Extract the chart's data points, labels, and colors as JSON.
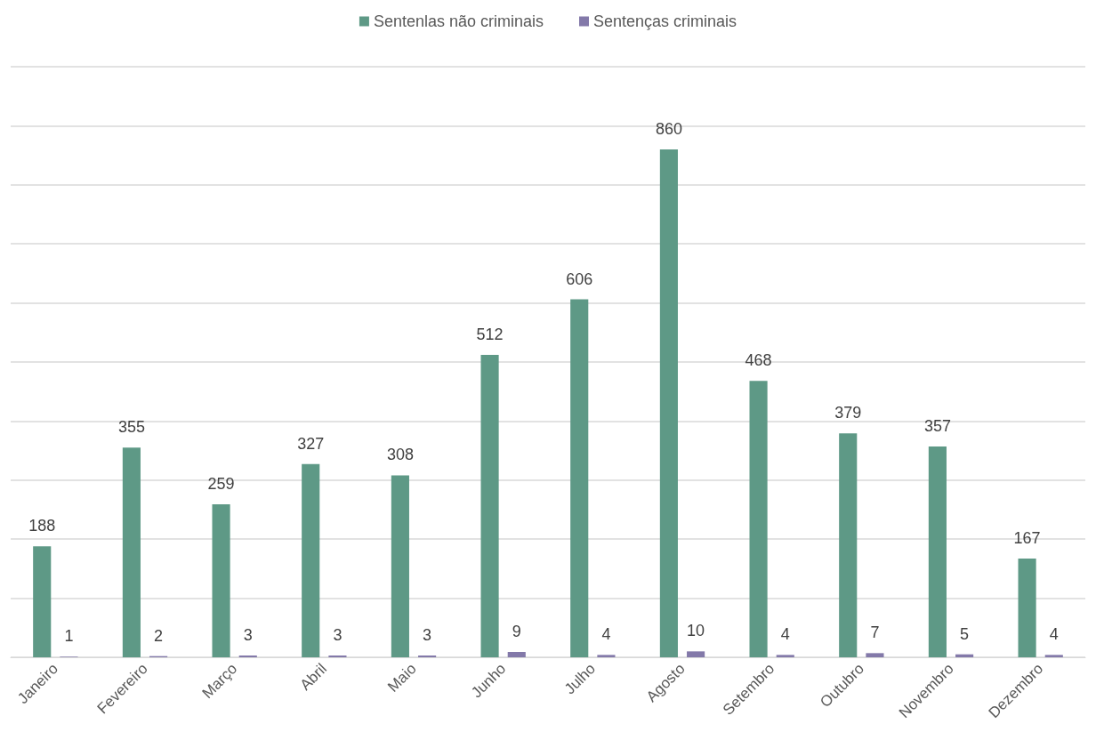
{
  "chart_data": {
    "type": "bar",
    "categories": [
      "Janeiro",
      "Fevereiro",
      "Março",
      "Abril",
      "Maio",
      "Junho",
      "Julho",
      "Agosto",
      "Setembro",
      "Outubro",
      "Novembro",
      "Dezembro"
    ],
    "series": [
      {
        "name": "Sentenlas não criminais",
        "color": "#5e9986",
        "values": [
          188,
          355,
          259,
          327,
          308,
          512,
          606,
          860,
          468,
          379,
          357,
          167
        ]
      },
      {
        "name": "Sentenças criminais",
        "color": "#8379a9",
        "values": [
          1,
          2,
          3,
          3,
          3,
          9,
          4,
          10,
          4,
          7,
          5,
          4
        ]
      }
    ],
    "ylim": [
      0,
      1000
    ],
    "yticks": [
      {
        "value": 0,
        "label": null
      },
      {
        "value": 100,
        "label": null
      },
      {
        "value": 200,
        "label": null
      },
      {
        "value": 300,
        "label": null
      },
      {
        "value": 400,
        "label": null
      },
      {
        "value": 500,
        "label": null
      },
      {
        "value": 600,
        "label": null
      },
      {
        "value": 700,
        "label": null
      },
      {
        "value": 800,
        "label": null
      },
      {
        "value": 900,
        "label": null
      },
      {
        "value": 1000,
        "label": null
      }
    ],
    "tick_labels": "x",
    "grid": "y",
    "legend": "top",
    "data_labels": true
  }
}
